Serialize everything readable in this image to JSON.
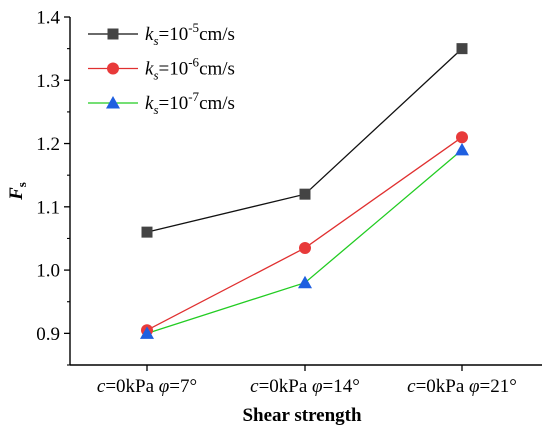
{
  "chart_data": {
    "type": "line",
    "categories": [
      {
        "var1": "c",
        "mid1": "=0kPa ",
        "var2": "φ",
        "mid2": "=7°"
      },
      {
        "var1": "c",
        "mid1": "=0kPa ",
        "var2": "φ",
        "mid2": "=14°"
      },
      {
        "var1": "c",
        "mid1": "=0kPa ",
        "var2": "φ",
        "mid2": "=21°"
      }
    ],
    "series": [
      {
        "name": "ks=10^-5cm/s",
        "label": {
          "var": "k",
          "sub": "s",
          "base": "=10",
          "exp": "-5",
          "unit": "cm/s"
        },
        "marker": "square",
        "color": "#111111",
        "marker_color": "#444444",
        "values": [
          1.06,
          1.12,
          1.35
        ]
      },
      {
        "name": "ks=10^-6cm/s",
        "label": {
          "var": "k",
          "sub": "s",
          "base": "=10",
          "exp": "-6",
          "unit": "cm/s"
        },
        "marker": "circle",
        "color": "#e03030",
        "marker_color": "#e83a3a",
        "values": [
          0.905,
          1.035,
          1.21
        ]
      },
      {
        "name": "ks=10^-7cm/s",
        "label": {
          "var": "k",
          "sub": "s",
          "base": "=10",
          "exp": "-7",
          "unit": "cm/s"
        },
        "marker": "triangle",
        "color": "#22cc22",
        "marker_color": "#1f5fe0",
        "values": [
          0.9,
          0.98,
          1.19
        ]
      }
    ],
    "xlabel": "Shear strength",
    "ylabel": {
      "main": "F",
      "sub": "s"
    },
    "ylim": [
      0.85,
      1.4
    ],
    "yticks": [
      "0.9",
      "1.0",
      "1.1",
      "1.2",
      "1.3",
      "1.4"
    ],
    "grid": false,
    "legend_position": "top-left"
  }
}
